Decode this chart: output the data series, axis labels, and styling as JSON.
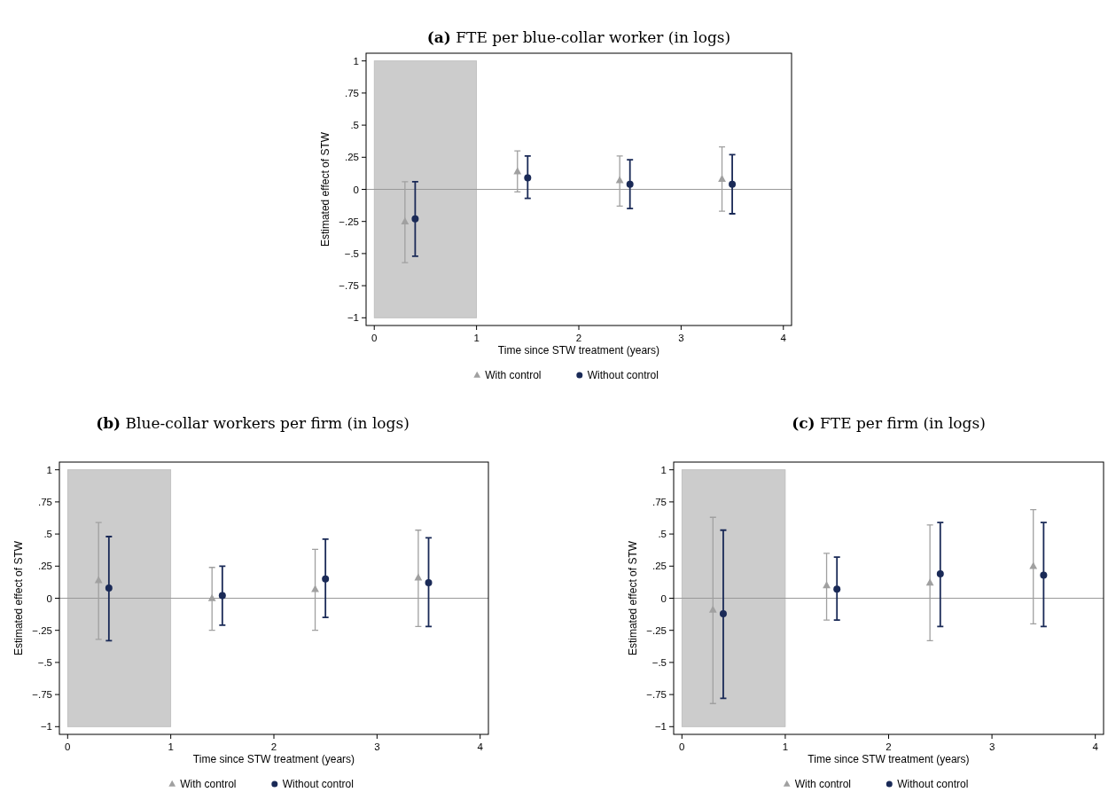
{
  "chart_data": [
    {
      "type": "scatter",
      "title": "(a) FTE per blue-collar worker (in logs)",
      "xlabel": "Time since STW treatment (years)",
      "ylabel": "Estimated effect of STW",
      "xlim": [
        -0.08,
        4.08
      ],
      "ylim": [
        -1.06,
        1.06
      ],
      "xticks": [
        0,
        1,
        2,
        3,
        4
      ],
      "yticks": [
        {
          "value": 1,
          "label": "1"
        },
        {
          "value": 0.75,
          "label": ".75"
        },
        {
          "value": 0.5,
          "label": ".5"
        },
        {
          "value": 0.25,
          "label": ".25"
        },
        {
          "value": 0,
          "label": "0"
        },
        {
          "value": -0.25,
          "label": "−.25"
        },
        {
          "value": -0.5,
          "label": "−.5"
        },
        {
          "value": -0.75,
          "label": "−.75"
        },
        {
          "value": -1,
          "label": "−1"
        }
      ],
      "grid": false,
      "legend": "bottom",
      "bands": [
        {
          "axis": "x",
          "from": 0,
          "to": 1,
          "color": "#cccccc"
        }
      ],
      "ref_lines": [
        {
          "axis": "y",
          "value": 0,
          "color": "#999999"
        }
      ],
      "series": [
        {
          "name": "With control",
          "color": "#a0a0a0",
          "marker": "triangle",
          "x": [
            0.3,
            1.4,
            2.4,
            3.4
          ],
          "values": [
            -0.25,
            0.14,
            0.07,
            0.08
          ],
          "errors": [
            [
              -0.57,
              0.06
            ],
            [
              -0.02,
              0.3
            ],
            [
              -0.13,
              0.26
            ],
            [
              -0.17,
              0.33
            ]
          ]
        },
        {
          "name": "Without control",
          "color": "#1a2a57",
          "marker": "circle",
          "x": [
            0.4,
            1.5,
            2.5,
            3.5
          ],
          "values": [
            -0.23,
            0.09,
            0.04,
            0.04
          ],
          "errors": [
            [
              -0.52,
              0.06
            ],
            [
              -0.07,
              0.26
            ],
            [
              -0.15,
              0.23
            ],
            [
              -0.19,
              0.27
            ]
          ]
        }
      ]
    },
    {
      "type": "scatter",
      "title": "(b) Blue-collar workers per firm (in logs)",
      "xlabel": "Time since STW treatment (years)",
      "ylabel": "Estimated effect of STW",
      "xlim": [
        -0.08,
        4.08
      ],
      "ylim": [
        -1.06,
        1.06
      ],
      "xticks": [
        0,
        1,
        2,
        3,
        4
      ],
      "yticks": [
        {
          "value": 1,
          "label": "1"
        },
        {
          "value": 0.75,
          "label": ".75"
        },
        {
          "value": 0.5,
          "label": ".5"
        },
        {
          "value": 0.25,
          "label": ".25"
        },
        {
          "value": 0,
          "label": "0"
        },
        {
          "value": -0.25,
          "label": "−.25"
        },
        {
          "value": -0.5,
          "label": "−.5"
        },
        {
          "value": -0.75,
          "label": "−.75"
        },
        {
          "value": -1,
          "label": "−1"
        }
      ],
      "grid": false,
      "legend": "bottom",
      "bands": [
        {
          "axis": "x",
          "from": 0,
          "to": 1,
          "color": "#cccccc"
        }
      ],
      "ref_lines": [
        {
          "axis": "y",
          "value": 0,
          "color": "#999999"
        }
      ],
      "series": [
        {
          "name": "With control",
          "color": "#a0a0a0",
          "marker": "triangle",
          "x": [
            0.3,
            1.4,
            2.4,
            3.4
          ],
          "values": [
            0.14,
            0.0,
            0.07,
            0.16
          ],
          "errors": [
            [
              -0.32,
              0.59
            ],
            [
              -0.25,
              0.24
            ],
            [
              -0.25,
              0.38
            ],
            [
              -0.22,
              0.53
            ]
          ]
        },
        {
          "name": "Without control",
          "color": "#1a2a57",
          "marker": "circle",
          "x": [
            0.4,
            1.5,
            2.5,
            3.5
          ],
          "values": [
            0.08,
            0.02,
            0.15,
            0.12
          ],
          "errors": [
            [
              -0.33,
              0.48
            ],
            [
              -0.21,
              0.25
            ],
            [
              -0.15,
              0.46
            ],
            [
              -0.22,
              0.47
            ]
          ]
        }
      ]
    },
    {
      "type": "scatter",
      "title": "(c) FTE per firm (in logs)",
      "xlabel": "Time since STW treatment (years)",
      "ylabel": "Estimated effect of STW",
      "xlim": [
        -0.08,
        4.08
      ],
      "ylim": [
        -1.06,
        1.06
      ],
      "xticks": [
        0,
        1,
        2,
        3,
        4
      ],
      "yticks": [
        {
          "value": 1,
          "label": "1"
        },
        {
          "value": 0.75,
          "label": ".75"
        },
        {
          "value": 0.5,
          "label": ".5"
        },
        {
          "value": 0.25,
          "label": ".25"
        },
        {
          "value": 0,
          "label": "0"
        },
        {
          "value": -0.25,
          "label": "−.25"
        },
        {
          "value": -0.5,
          "label": "−.5"
        },
        {
          "value": -0.75,
          "label": "−.75"
        },
        {
          "value": -1,
          "label": "−1"
        }
      ],
      "grid": false,
      "legend": "bottom",
      "bands": [
        {
          "axis": "x",
          "from": 0,
          "to": 1,
          "color": "#cccccc"
        }
      ],
      "ref_lines": [
        {
          "axis": "y",
          "value": 0,
          "color": "#999999"
        }
      ],
      "series": [
        {
          "name": "With control",
          "color": "#a0a0a0",
          "marker": "triangle",
          "x": [
            0.3,
            1.4,
            2.4,
            3.4
          ],
          "values": [
            -0.09,
            0.1,
            0.12,
            0.25
          ],
          "errors": [
            [
              -0.82,
              0.63
            ],
            [
              -0.17,
              0.35
            ],
            [
              -0.33,
              0.57
            ],
            [
              -0.2,
              0.69
            ]
          ]
        },
        {
          "name": "Without control",
          "color": "#1a2a57",
          "marker": "circle",
          "x": [
            0.4,
            1.5,
            2.5,
            3.5
          ],
          "values": [
            -0.12,
            0.07,
            0.19,
            0.18
          ],
          "errors": [
            [
              -0.78,
              0.53
            ],
            [
              -0.17,
              0.32
            ],
            [
              -0.22,
              0.59
            ],
            [
              -0.22,
              0.59
            ]
          ]
        }
      ]
    }
  ]
}
